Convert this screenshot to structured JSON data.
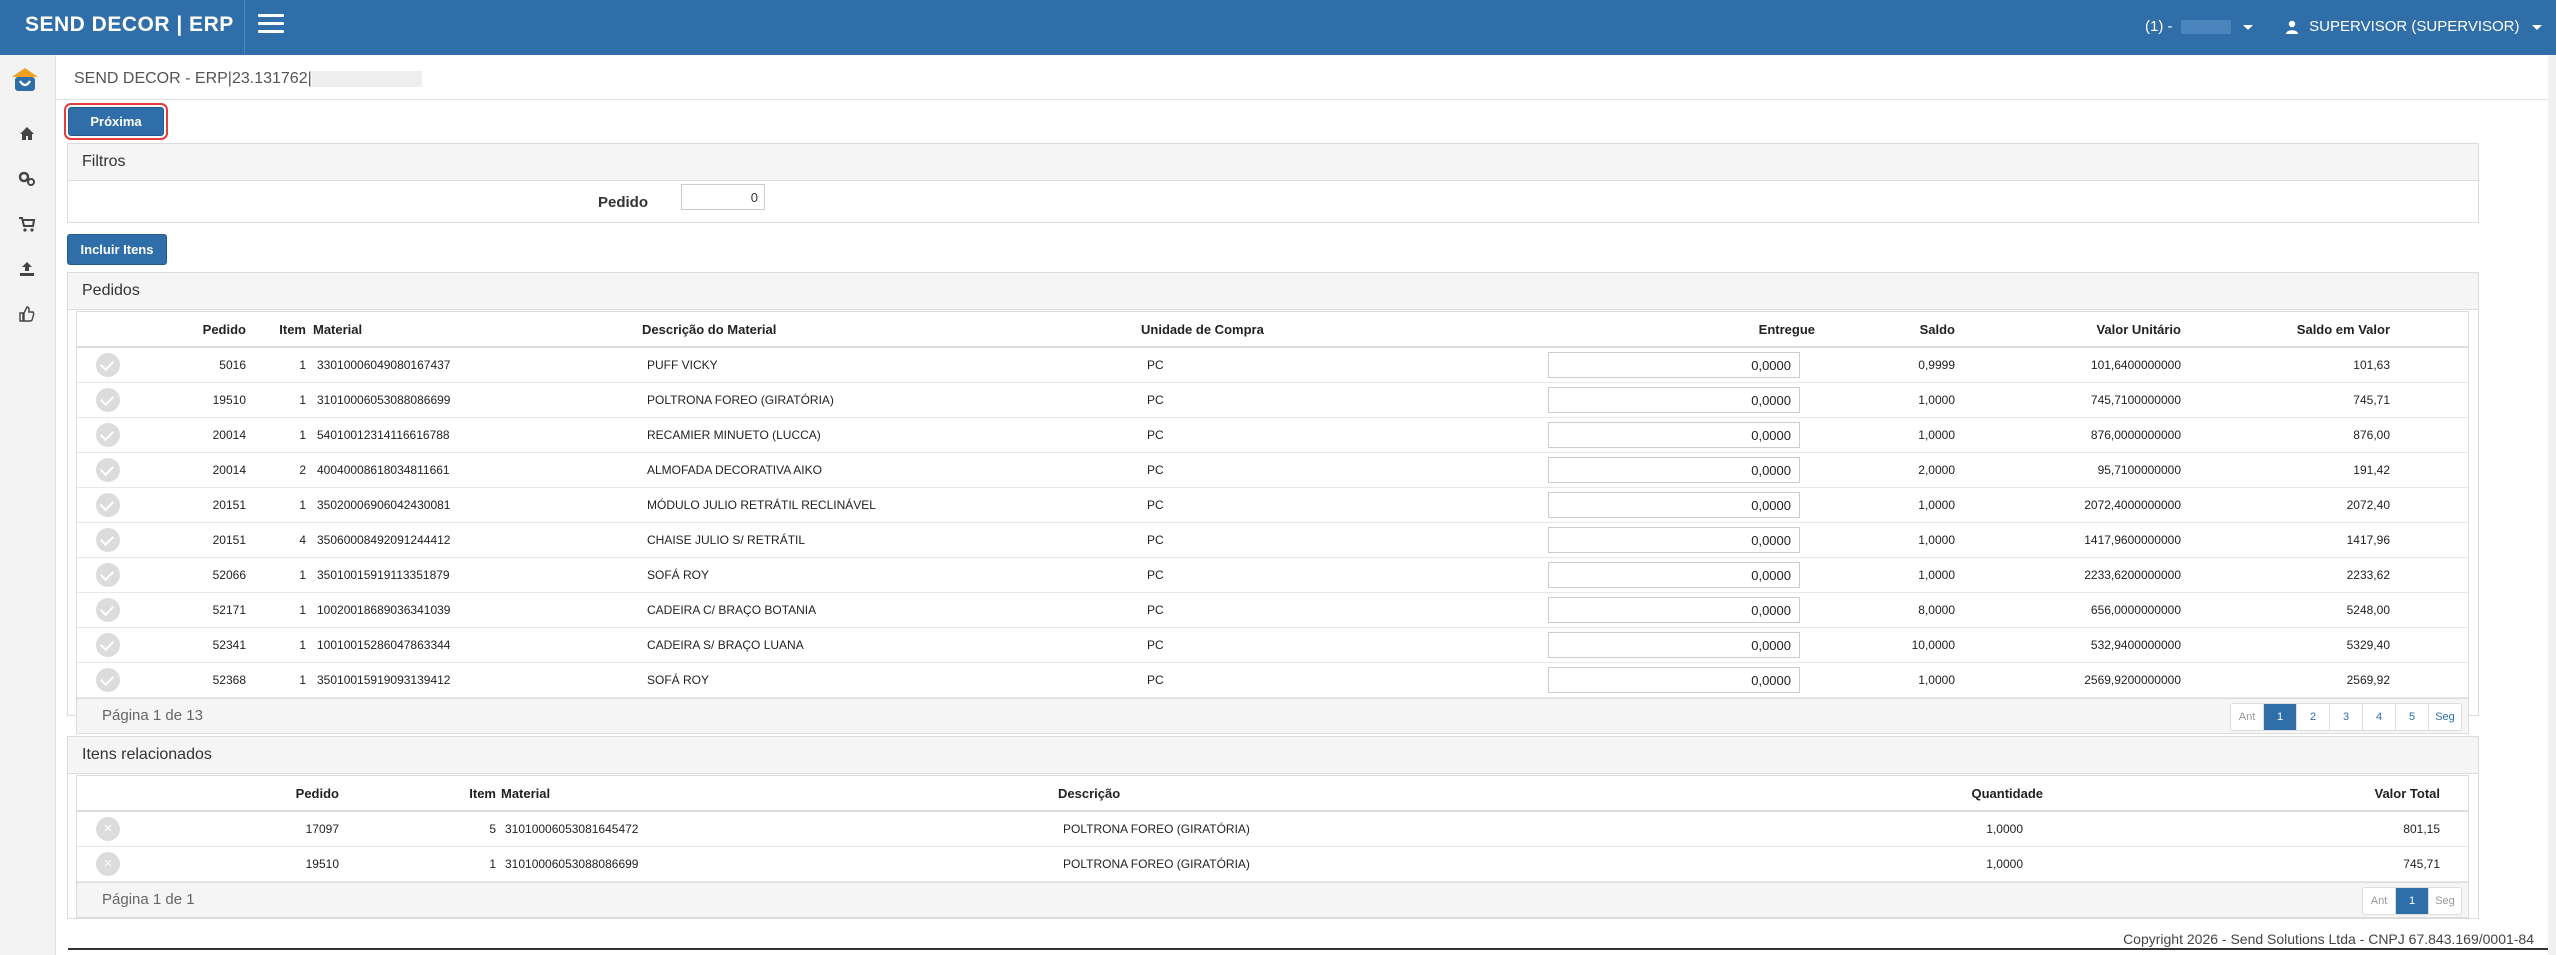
{
  "header": {
    "brand": "SEND DECOR | ERP",
    "company": "(1) -",
    "user": "SUPERVISOR (SUPERVISOR)"
  },
  "breadcrumb": "SEND DECOR - ERP|23.131762|",
  "buttons": {
    "next": "Próxima",
    "add_items": "Incluir Itens"
  },
  "filters": {
    "title": "Filtros",
    "pedido_label": "Pedido",
    "pedido_value": "0"
  },
  "orders": {
    "title": "Pedidos",
    "columns": [
      "Pedido",
      "Item",
      "Material",
      "Descrição do Material",
      "Unidade de Compra",
      "Entregue",
      "Saldo",
      "Valor Unitário",
      "Saldo em Valor"
    ],
    "rows": [
      {
        "pedido": "5016",
        "item": "1",
        "material": "33010006049080167437",
        "descricao": "PUFF VICKY",
        "unidade": "PC",
        "entregue": "0,0000",
        "saldo": "0,9999",
        "valor_unit": "101,6400000000",
        "saldo_valor": "101,63"
      },
      {
        "pedido": "19510",
        "item": "1",
        "material": "31010006053088086699",
        "descricao": "POLTRONA FOREO (GIRATÓRIA)",
        "unidade": "PC",
        "entregue": "0,0000",
        "saldo": "1,0000",
        "valor_unit": "745,7100000000",
        "saldo_valor": "745,71"
      },
      {
        "pedido": "20014",
        "item": "1",
        "material": "54010012314116616788",
        "descricao": "RECAMIER MINUETO (LUCCA)",
        "unidade": "PC",
        "entregue": "0,0000",
        "saldo": "1,0000",
        "valor_unit": "876,0000000000",
        "saldo_valor": "876,00"
      },
      {
        "pedido": "20014",
        "item": "2",
        "material": "40040008618034811661",
        "descricao": "ALMOFADA DECORATIVA AIKO",
        "unidade": "PC",
        "entregue": "0,0000",
        "saldo": "2,0000",
        "valor_unit": "95,7100000000",
        "saldo_valor": "191,42"
      },
      {
        "pedido": "20151",
        "item": "1",
        "material": "35020006906042430081",
        "descricao": "MÓDULO JULIO RETRÁTIL RECLINÁVEL",
        "unidade": "PC",
        "entregue": "0,0000",
        "saldo": "1,0000",
        "valor_unit": "2072,4000000000",
        "saldo_valor": "2072,40"
      },
      {
        "pedido": "20151",
        "item": "4",
        "material": "35060008492091244412",
        "descricao": "CHAISE JULIO S/ RETRÁTIL",
        "unidade": "PC",
        "entregue": "0,0000",
        "saldo": "1,0000",
        "valor_unit": "1417,9600000000",
        "saldo_valor": "1417,96"
      },
      {
        "pedido": "52066",
        "item": "1",
        "material": "35010015919113351879",
        "descricao": "SOFÁ ROY",
        "unidade": "PC",
        "entregue": "0,0000",
        "saldo": "1,0000",
        "valor_unit": "2233,6200000000",
        "saldo_valor": "2233,62"
      },
      {
        "pedido": "52171",
        "item": "1",
        "material": "10020018689036341039",
        "descricao": "CADEIRA C/ BRAÇO BOTANIA",
        "unidade": "PC",
        "entregue": "0,0000",
        "saldo": "8,0000",
        "valor_unit": "656,0000000000",
        "saldo_valor": "5248,00"
      },
      {
        "pedido": "52341",
        "item": "1",
        "material": "10010015286047863344",
        "descricao": "CADEIRA S/ BRAÇO LUANA",
        "unidade": "PC",
        "entregue": "0,0000",
        "saldo": "10,0000",
        "valor_unit": "532,9400000000",
        "saldo_valor": "5329,40"
      },
      {
        "pedido": "52368",
        "item": "1",
        "material": "35010015919093139412",
        "descricao": "SOFÁ ROY",
        "unidade": "PC",
        "entregue": "0,0000",
        "saldo": "1,0000",
        "valor_unit": "2569,9200000000",
        "saldo_valor": "2569,92"
      }
    ],
    "page_info": "Página 1 de 13",
    "pager": [
      "Ant",
      "1",
      "2",
      "3",
      "4",
      "5",
      "Seg"
    ]
  },
  "related": {
    "title": "Itens relacionados",
    "columns": [
      "Pedido",
      "Item",
      "Material",
      "Descrição",
      "Quantidade",
      "Valor Total"
    ],
    "rows": [
      {
        "pedido": "17097",
        "item": "5",
        "material": "31010006053081645472",
        "descricao": "POLTRONA FOREO (GIRATÓRIA)",
        "quantidade": "1,0000",
        "valor_total": "801,15"
      },
      {
        "pedido": "19510",
        "item": "1",
        "material": "31010006053088086699",
        "descricao": "POLTRONA FOREO (GIRATÓRIA)",
        "quantidade": "1,0000",
        "valor_total": "745,71"
      }
    ],
    "page_info": "Página 1 de 1",
    "pager": [
      "Ant",
      "1",
      "Seg"
    ]
  },
  "footer": {
    "copyright": "Copyright 2026 - Send Solutions Ltda - CNPJ 67.843.169/0001-84"
  },
  "colors": {
    "primary": "#2f6ea8",
    "highlight": "#e43d3d"
  },
  "icons": {
    "sidebar": [
      "home-icon",
      "cogs-icon",
      "cart-icon",
      "upload-icon",
      "thumbs-up-icon"
    ]
  }
}
